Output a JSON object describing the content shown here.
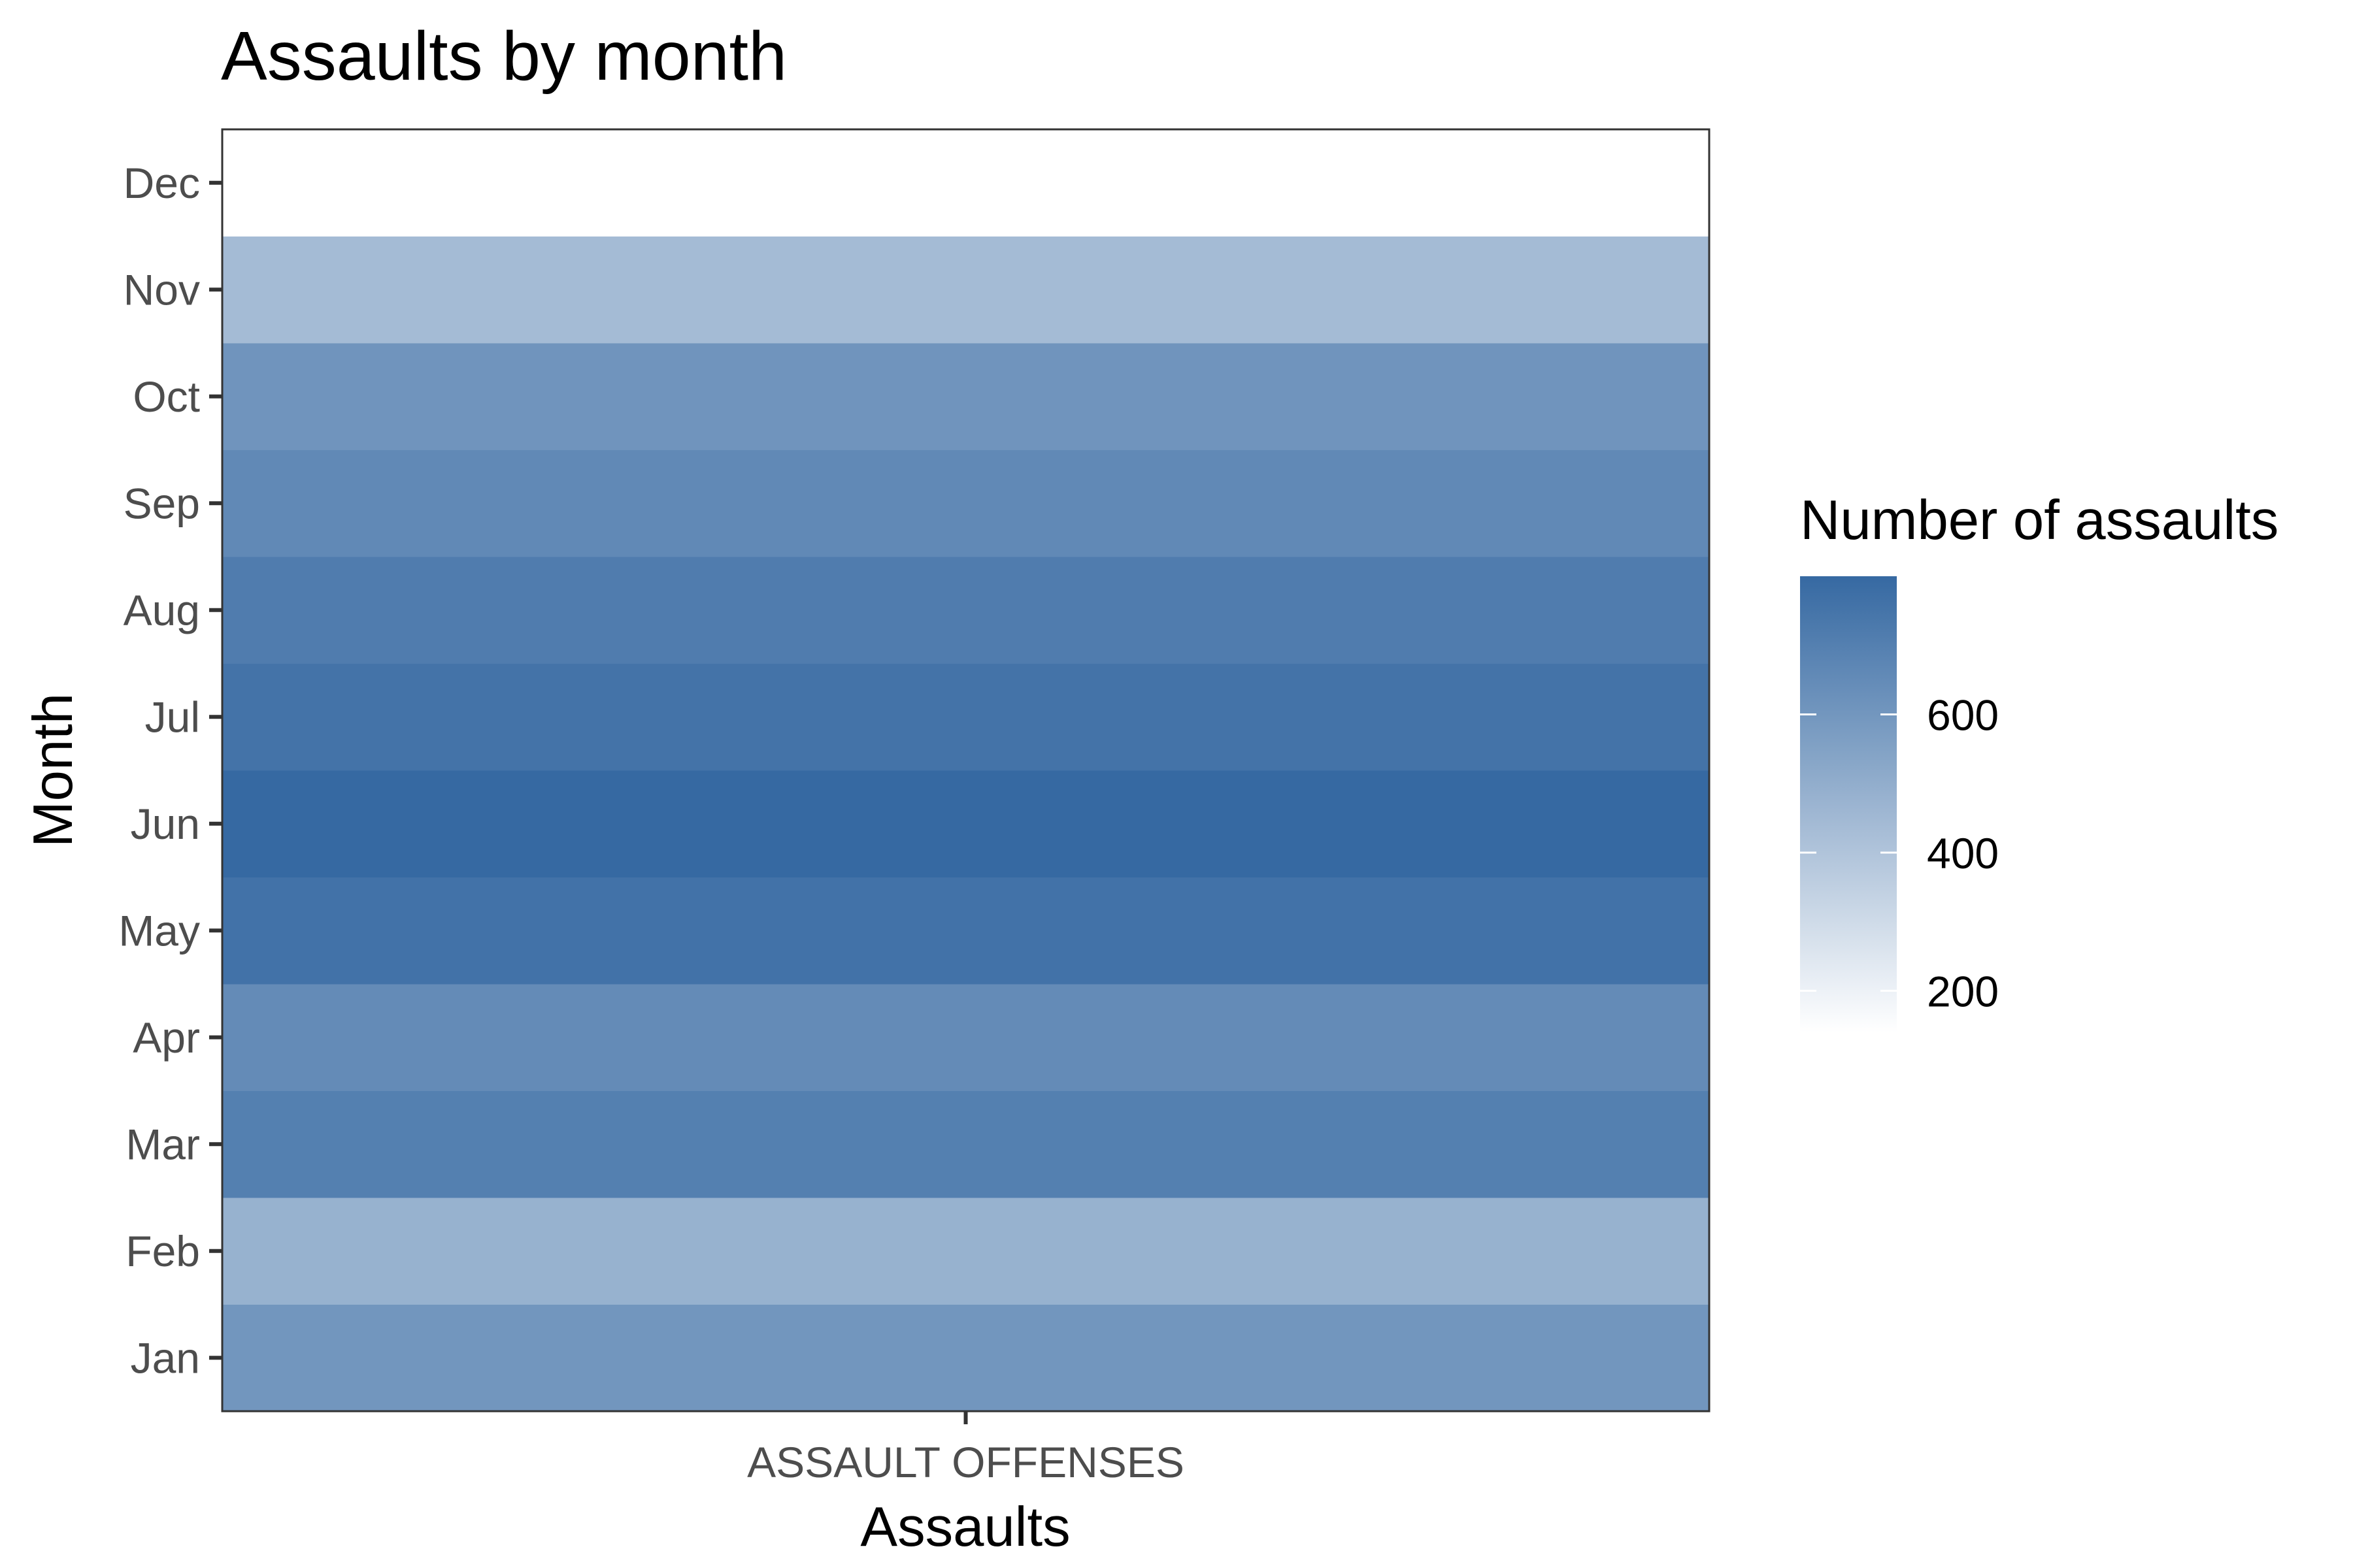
{
  "chart_data": {
    "type": "heatmap",
    "title": "Assaults by month",
    "xlabel": "Assaults",
    "ylabel": "Month",
    "x_categories": [
      "ASSAULT OFFENSES"
    ],
    "y_categories": [
      "Jan",
      "Feb",
      "Mar",
      "Apr",
      "May",
      "Jun",
      "Jul",
      "Aug",
      "Sep",
      "Oct",
      "Nov",
      "Dec"
    ],
    "values": [
      603,
      480,
      700,
      650,
      760,
      800,
      755,
      715,
      660,
      610,
      440,
      140
    ],
    "legend": {
      "title": "Number of assaults",
      "placement": "right",
      "breaks": [
        200,
        400,
        600
      ],
      "range": [
        140,
        800
      ]
    },
    "colors": {
      "low": "#ffffff",
      "high": "#3669a2",
      "panel_border": "#333333",
      "tick_label": "#4d4d4d"
    },
    "grid": false
  }
}
